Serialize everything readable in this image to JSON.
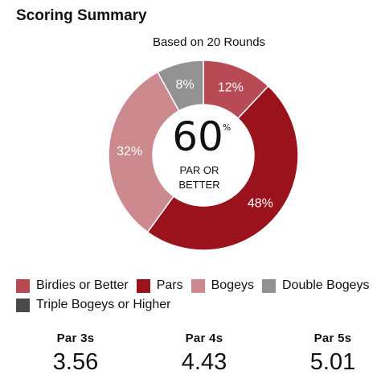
{
  "header": {
    "title": "Scoring Summary"
  },
  "chart_data": {
    "type": "pie",
    "variant": "donut",
    "subtitle": "Based on 20 Rounds",
    "center": {
      "value": "60",
      "unit": "%",
      "label_line1": "PAR OR",
      "label_line2": "BETTER"
    },
    "slices": [
      {
        "name": "Birdies or Better",
        "value": 12,
        "label": "12%",
        "color": "#b84a55"
      },
      {
        "name": "Pars",
        "value": 48,
        "label": "48%",
        "color": "#99121c"
      },
      {
        "name": "Bogeys",
        "value": 32,
        "label": "32%",
        "color": "#cc8a8f"
      },
      {
        "name": "Double Bogeys",
        "value": 8,
        "label": "8%",
        "color": "#929292"
      },
      {
        "name": "Triple Bogeys or Higher",
        "value": 0,
        "label": "",
        "color": "#4a4a4a"
      }
    ],
    "legend_position": "bottom"
  },
  "par_stats": [
    {
      "label": "Par 3s",
      "value": "3.56"
    },
    {
      "label": "Par 4s",
      "value": "4.43"
    },
    {
      "label": "Par 5s",
      "value": "5.01"
    }
  ]
}
